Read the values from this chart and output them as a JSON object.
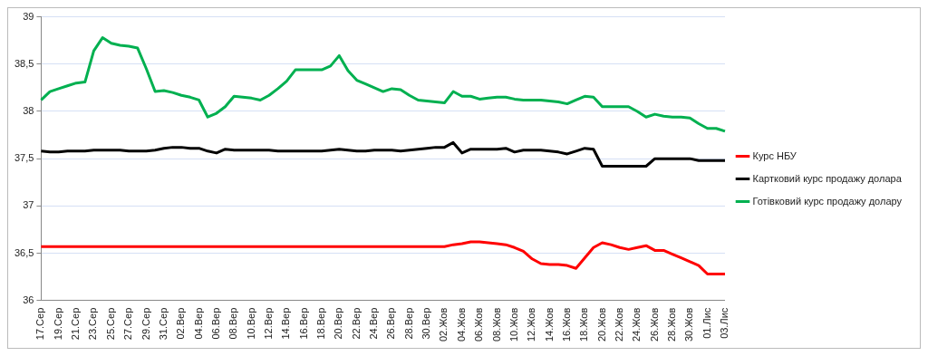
{
  "chart_data": {
    "type": "line",
    "categories": [
      "17.Сер",
      null,
      "19.Сер",
      null,
      "21.Сер",
      null,
      "23.Сер",
      null,
      "25.Сер",
      null,
      "27.Сер",
      null,
      "29.Сер",
      null,
      "31.Сер",
      null,
      "02.Вер",
      null,
      "04.Вер",
      null,
      "06.Вер",
      null,
      "08.Вер",
      null,
      "10.Вер",
      null,
      "12.Вер",
      null,
      "14.Вер",
      null,
      "16.Вер",
      null,
      "18.Вер",
      null,
      "20.Вер",
      null,
      "22.Вер",
      null,
      "24.Вер",
      null,
      "26.Вер",
      null,
      "28.Вер",
      null,
      "30.Вер",
      null,
      "02.Жов",
      null,
      "04.Жов",
      null,
      "06.Жов",
      null,
      "08.Жов",
      null,
      "10.Жов",
      null,
      "12.Жов",
      null,
      "14.Жов",
      null,
      "16.Жов",
      null,
      "18.Жов",
      null,
      "20.Жов",
      null,
      "22.Жов",
      null,
      "24.Жов",
      null,
      "26.Жов",
      null,
      "28.Жов",
      null,
      "30.Жов",
      null,
      "01.Лис",
      null,
      "03.Лис"
    ],
    "series": [
      {
        "name": "Курс НБУ",
        "color": "#ff0000",
        "values": [
          36.57,
          36.57,
          36.57,
          36.57,
          36.57,
          36.57,
          36.57,
          36.57,
          36.57,
          36.57,
          36.57,
          36.57,
          36.57,
          36.57,
          36.57,
          36.57,
          36.57,
          36.57,
          36.57,
          36.57,
          36.57,
          36.57,
          36.57,
          36.57,
          36.57,
          36.57,
          36.57,
          36.57,
          36.57,
          36.57,
          36.57,
          36.57,
          36.57,
          36.57,
          36.57,
          36.57,
          36.57,
          36.57,
          36.57,
          36.57,
          36.57,
          36.57,
          36.57,
          36.57,
          36.57,
          36.57,
          36.57,
          36.59,
          36.6,
          36.62,
          36.62,
          36.61,
          36.6,
          36.59,
          36.56,
          36.52,
          36.44,
          36.39,
          36.38,
          36.38,
          36.37,
          36.34,
          36.45,
          36.56,
          36.61,
          36.59,
          36.56,
          36.54,
          36.56,
          36.58,
          36.53,
          36.53,
          36.49,
          36.45,
          36.41,
          36.37,
          36.28,
          36.28,
          36.28
        ]
      },
      {
        "name": "Картковий курс продажу долара",
        "color": "#000000",
        "values": [
          37.58,
          37.57,
          37.57,
          37.58,
          37.58,
          37.58,
          37.59,
          37.59,
          37.59,
          37.59,
          37.58,
          37.58,
          37.58,
          37.59,
          37.61,
          37.62,
          37.62,
          37.61,
          37.61,
          37.58,
          37.56,
          37.6,
          37.59,
          37.59,
          37.59,
          37.59,
          37.59,
          37.58,
          37.58,
          37.58,
          37.58,
          37.58,
          37.58,
          37.59,
          37.6,
          37.59,
          37.58,
          37.58,
          37.59,
          37.59,
          37.59,
          37.58,
          37.59,
          37.6,
          37.61,
          37.62,
          37.62,
          37.67,
          37.56,
          37.6,
          37.6,
          37.6,
          37.6,
          37.61,
          37.57,
          37.59,
          37.59,
          37.59,
          37.58,
          37.57,
          37.55,
          37.58,
          37.61,
          37.6,
          37.42,
          37.42,
          37.42,
          37.42,
          37.42,
          37.42,
          37.5,
          37.5,
          37.5,
          37.5,
          37.5,
          37.48,
          37.48,
          37.48,
          37.48
        ]
      },
      {
        "name": "Готівковий курс продажу долару",
        "color": "#00b050",
        "values": [
          38.12,
          38.21,
          38.24,
          38.27,
          38.3,
          38.31,
          38.64,
          38.78,
          38.72,
          38.7,
          38.69,
          38.67,
          38.45,
          38.21,
          38.22,
          38.2,
          38.17,
          38.15,
          38.12,
          37.94,
          37.98,
          38.05,
          38.16,
          38.15,
          38.14,
          38.12,
          38.17,
          38.24,
          38.32,
          38.44,
          38.44,
          38.44,
          38.44,
          38.48,
          38.59,
          38.43,
          38.33,
          38.29,
          38.25,
          38.21,
          38.24,
          38.23,
          38.17,
          38.12,
          38.11,
          38.1,
          38.09,
          38.21,
          38.16,
          38.16,
          38.13,
          38.14,
          38.15,
          38.15,
          38.13,
          38.12,
          38.12,
          38.12,
          38.11,
          38.1,
          38.08,
          38.12,
          38.16,
          38.15,
          38.05,
          38.05,
          38.05,
          38.05,
          38,
          37.94,
          37.97,
          37.95,
          37.94,
          37.94,
          37.93,
          37.87,
          37.82,
          37.82,
          37.79
        ]
      }
    ],
    "ylim": [
      36,
      39
    ],
    "yticks": [
      36,
      {
        "value": 36.5,
        "label": "36,5"
      },
      37,
      {
        "value": 37.5,
        "label": "37,5"
      },
      38,
      {
        "value": 38.5,
        "label": "38,5"
      },
      39
    ],
    "grid": "y",
    "legend": "right",
    "marker": "none",
    "line_style": "solid"
  }
}
